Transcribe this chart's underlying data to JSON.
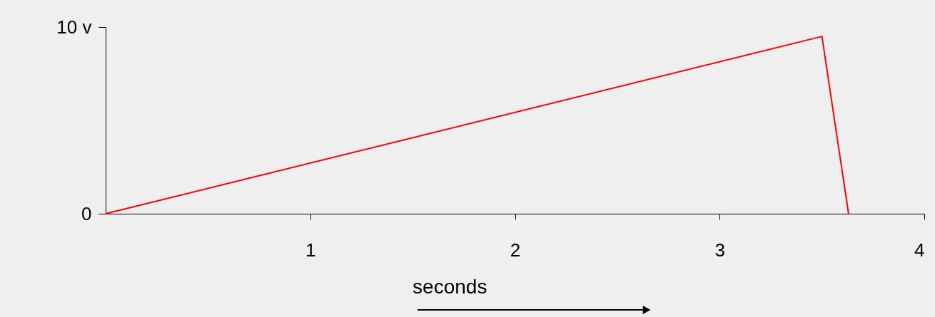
{
  "chart_data": {
    "type": "line",
    "xlabel": "seconds",
    "x": [
      0,
      3.5,
      3.63
    ],
    "series": [
      {
        "color": "#ff0000",
        "values": [
          0,
          9.5,
          0
        ]
      }
    ],
    "xlim": [
      0,
      4
    ],
    "xticks": [
      1,
      2,
      3,
      4
    ],
    "ylim": [
      0,
      10
    ],
    "yticks": [
      0,
      {
        "value": 10,
        "label": "10 v"
      }
    ],
    "grid": false,
    "marker": "none",
    "line_style": "solid"
  }
}
